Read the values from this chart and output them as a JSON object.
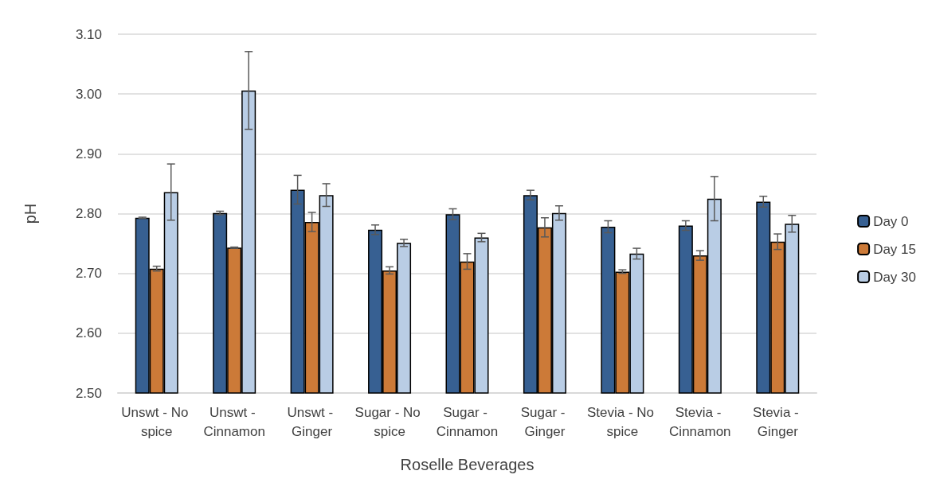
{
  "chart_data": {
    "type": "bar",
    "xlabel": "Roselle Beverages",
    "ylabel": "pH",
    "categories": [
      "Unswt - No spice",
      "Unswt - Cinnamon",
      "Unswt - Ginger",
      "Sugar - No spice",
      "Sugar - Cinnamon",
      "Sugar - Ginger",
      "Stevia - No spice",
      "Stevia - Cinnamon",
      "Stevia - Ginger"
    ],
    "series": [
      {
        "name": "Day 0",
        "color": "#376092",
        "values": [
          2.793,
          2.801,
          2.84,
          2.773,
          2.799,
          2.831,
          2.778,
          2.78,
          2.82
        ],
        "errors": [
          0.001,
          0.003,
          0.024,
          0.008,
          0.009,
          0.008,
          0.01,
          0.008,
          0.009
        ]
      },
      {
        "name": "Day 15",
        "color": "#cc7a38",
        "values": [
          2.708,
          2.743,
          2.786,
          2.705,
          2.72,
          2.777,
          2.703,
          2.73,
          2.753
        ],
        "errors": [
          0.004,
          0.001,
          0.016,
          0.006,
          0.013,
          0.016,
          0.003,
          0.008,
          0.013
        ]
      },
      {
        "name": "Day 30",
        "color": "#b9cde5",
        "values": [
          2.836,
          3.006,
          2.831,
          2.751,
          2.76,
          2.801,
          2.733,
          2.825,
          2.783
        ],
        "errors": [
          0.047,
          0.065,
          0.019,
          0.006,
          0.007,
          0.012,
          0.009,
          0.037,
          0.014
        ]
      }
    ],
    "ylim": [
      2.5,
      3.1
    ],
    "yticks": [
      {
        "value": 2.5,
        "label": "2.50"
      },
      {
        "value": 2.6,
        "label": "2.60"
      },
      {
        "value": 2.7,
        "label": "2.70"
      },
      {
        "value": 2.8,
        "label": "2.80"
      },
      {
        "value": 2.9,
        "label": "2.90"
      },
      {
        "value": 3.0,
        "label": "3.00"
      },
      {
        "value": 3.1,
        "label": "3.10"
      }
    ],
    "grid": "y",
    "legend": "right"
  }
}
